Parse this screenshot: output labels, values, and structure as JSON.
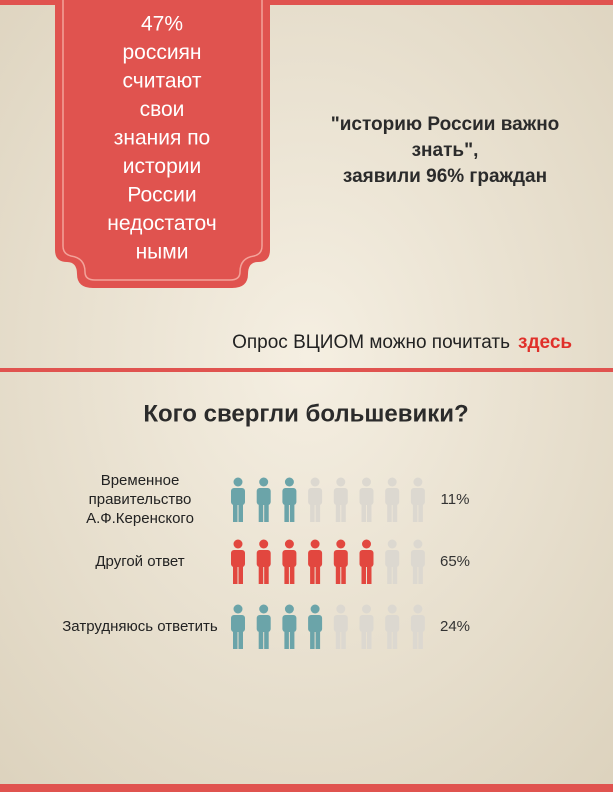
{
  "banner": {
    "lines": [
      "47%",
      "россиян",
      "считают",
      "свои",
      "знания по",
      "истории",
      "России",
      "недостаточ",
      "ными"
    ]
  },
  "quote": {
    "lines": [
      "\"историю России важно",
      "знать\",",
      "заявили 96% граждан"
    ]
  },
  "source": {
    "text": "Опрос ВЦИОМ можно почитать",
    "link": "здесь"
  },
  "survey": {
    "title": "Кого свергли большевики?",
    "rows": [
      {
        "label": [
          "Временное",
          "правительство",
          "А.Ф.Керенского"
        ],
        "percent": "11%",
        "filled": 3,
        "total": 8,
        "color": "#6ba4a9"
      },
      {
        "label": [
          "Другой ответ"
        ],
        "percent": "65%",
        "filled": 6,
        "total": 8,
        "color": "#e2473f"
      },
      {
        "label": [
          "Затрудняюсь ответить"
        ],
        "percent": "24%",
        "filled": 4,
        "total": 8,
        "color": "#6ba4a9"
      }
    ]
  }
}
